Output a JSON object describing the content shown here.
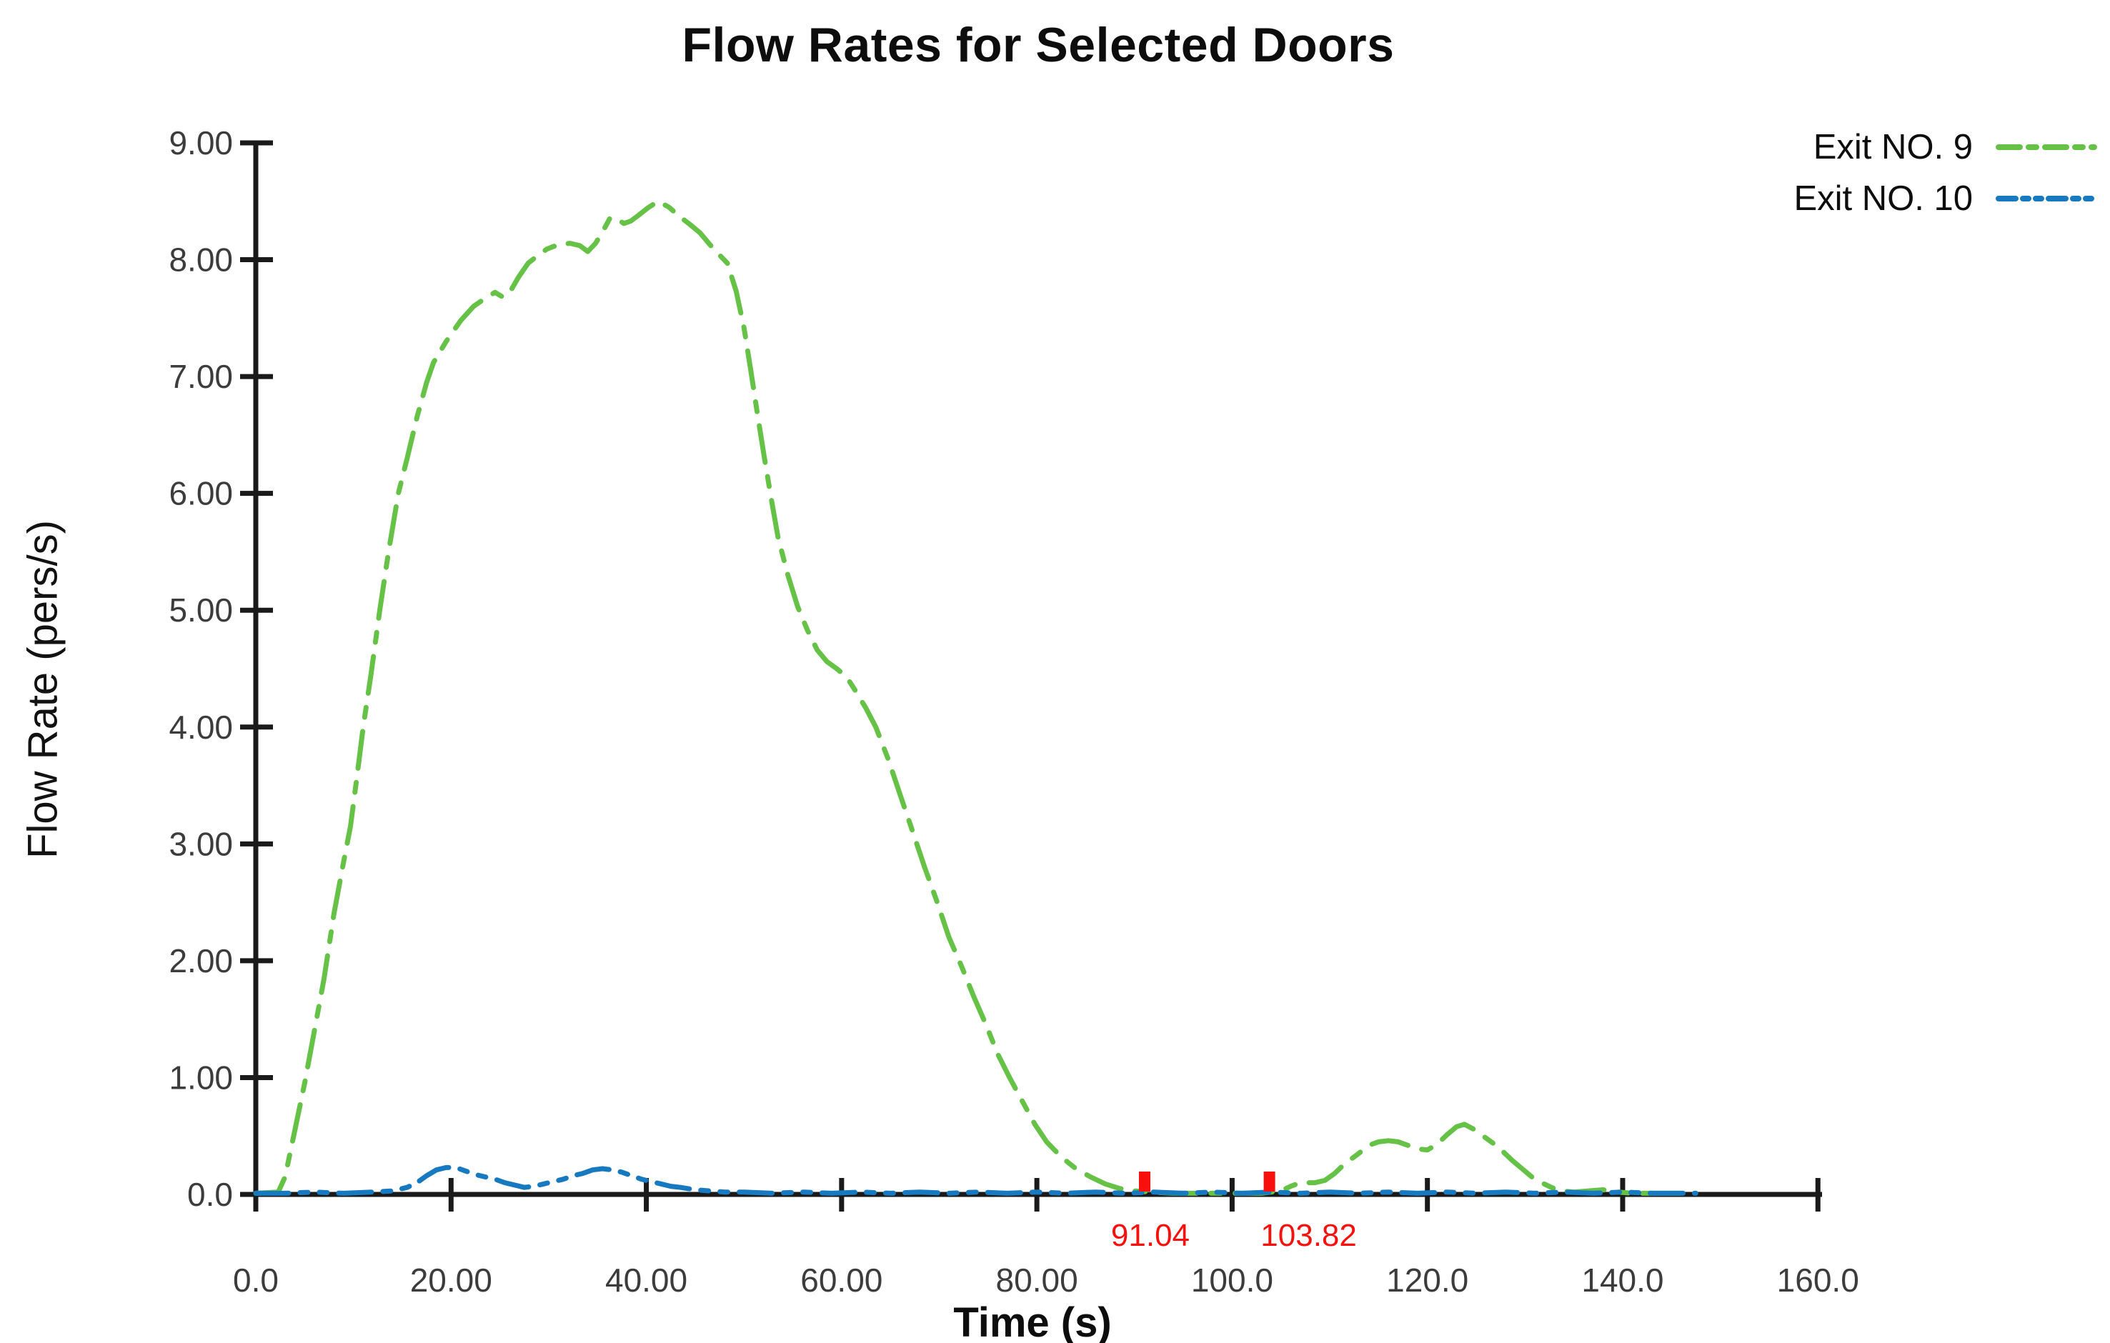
{
  "page": {
    "background": "#ffffff"
  },
  "chart_data": {
    "type": "line",
    "title": "Flow Rates for Selected Doors",
    "xlabel": "Time (s)",
    "ylabel": "Flow Rate (pers/s)",
    "xlim": [
      0,
      160
    ],
    "ylim": [
      0,
      9
    ],
    "grid": false,
    "legend_position": "top-right",
    "axis_color": "#1a1a1a",
    "tick_label_color": "#3c3c3c",
    "xticks": [
      {
        "label": "0.0",
        "t": 0
      },
      {
        "label": "20.00",
        "t": 20
      },
      {
        "label": "40.00",
        "t": 40
      },
      {
        "label": "60.00",
        "t": 60
      },
      {
        "label": "80.00",
        "t": 80
      },
      {
        "label": "100.0",
        "t": 100
      },
      {
        "label": "120.0",
        "t": 120
      },
      {
        "label": "140.0",
        "t": 140
      },
      {
        "label": "160.0",
        "t": 160
      }
    ],
    "yticks": [
      {
        "label": "9.00",
        "v": 9
      },
      {
        "label": "8.00",
        "v": 8
      },
      {
        "label": "7.00",
        "v": 7
      },
      {
        "label": "6.00",
        "v": 6
      },
      {
        "label": "5.00",
        "v": 5
      },
      {
        "label": "4.00",
        "v": 4
      },
      {
        "label": "3.00",
        "v": 3
      },
      {
        "label": "2.00",
        "v": 2
      },
      {
        "label": "1.00",
        "v": 1
      },
      {
        "label": "0.0",
        "v": 0
      }
    ],
    "annotations": [
      {
        "label": "91.04",
        "t": 91.04,
        "color": "#f8100d"
      },
      {
        "label": "103.82",
        "t": 103.82,
        "color": "#f8100d"
      }
    ],
    "series": [
      {
        "name": "Exit NO. 9",
        "color": "#66c247",
        "dash": "52 20 14 20",
        "points": [
          [
            0,
            0.01
          ],
          [
            2.3,
            0.02
          ],
          [
            3,
            0.15
          ],
          [
            4,
            0.55
          ],
          [
            5,
            0.95
          ],
          [
            6,
            1.4
          ],
          [
            7,
            1.85
          ],
          [
            8,
            2.4
          ],
          [
            9,
            2.85
          ],
          [
            9.7,
            3.15
          ],
          [
            10.4,
            3.6
          ],
          [
            11,
            4
          ],
          [
            11.8,
            4.45
          ],
          [
            12.7,
            5
          ],
          [
            13.6,
            5.5
          ],
          [
            14.6,
            6
          ],
          [
            15.5,
            6.3
          ],
          [
            16.5,
            6.65
          ],
          [
            17.5,
            6.95
          ],
          [
            18.2,
            7.12
          ],
          [
            19.5,
            7.3
          ],
          [
            21,
            7.48
          ],
          [
            22.3,
            7.6
          ],
          [
            23.5,
            7.67
          ],
          [
            24.5,
            7.72
          ],
          [
            25.3,
            7.68
          ],
          [
            26,
            7.72
          ],
          [
            26.9,
            7.85
          ],
          [
            27.9,
            7.97
          ],
          [
            28.8,
            8.03
          ],
          [
            29.8,
            8.09
          ],
          [
            31,
            8.13
          ],
          [
            32.2,
            8.14
          ],
          [
            33.2,
            8.12
          ],
          [
            34,
            8.07
          ],
          [
            34.8,
            8.14
          ],
          [
            35.6,
            8.25
          ],
          [
            36.3,
            8.36
          ],
          [
            37,
            8.35
          ],
          [
            37.7,
            8.31
          ],
          [
            38.4,
            8.33
          ],
          [
            39.2,
            8.38
          ],
          [
            40.1,
            8.44
          ],
          [
            41.2,
            8.5
          ],
          [
            42.3,
            8.45
          ],
          [
            43.4,
            8.37
          ],
          [
            44.5,
            8.3
          ],
          [
            45.5,
            8.23
          ],
          [
            46.5,
            8.13
          ],
          [
            47.5,
            8.04
          ],
          [
            48.3,
            7.97
          ],
          [
            49.2,
            7.73
          ],
          [
            50,
            7.42
          ],
          [
            50.7,
            7.05
          ],
          [
            51.4,
            6.67
          ],
          [
            52.1,
            6.3
          ],
          [
            52.8,
            5.95
          ],
          [
            53.5,
            5.62
          ],
          [
            54.5,
            5.3
          ],
          [
            55.5,
            5.03
          ],
          [
            56.5,
            4.83
          ],
          [
            57.5,
            4.66
          ],
          [
            58.5,
            4.56
          ],
          [
            59.5,
            4.5
          ],
          [
            60.5,
            4.43
          ],
          [
            61.5,
            4.3
          ],
          [
            62.5,
            4.16
          ],
          [
            63.5,
            4
          ],
          [
            64.8,
            3.72
          ],
          [
            66,
            3.42
          ],
          [
            67.3,
            3.1
          ],
          [
            68.5,
            2.8
          ],
          [
            69.8,
            2.5
          ],
          [
            71,
            2.2
          ],
          [
            72.3,
            1.95
          ],
          [
            73.5,
            1.7
          ],
          [
            74.8,
            1.45
          ],
          [
            76,
            1.2
          ],
          [
            77.2,
            1
          ],
          [
            78.5,
            0.8
          ],
          [
            79.8,
            0.6
          ],
          [
            81,
            0.45
          ],
          [
            82.5,
            0.32
          ],
          [
            84,
            0.22
          ],
          [
            85.5,
            0.15
          ],
          [
            87,
            0.09
          ],
          [
            88.5,
            0.05
          ],
          [
            90,
            0.03
          ],
          [
            91.5,
            0.02
          ],
          [
            94,
            0.01
          ],
          [
            97,
            0.01
          ],
          [
            100,
            0.01
          ],
          [
            103,
            0.01
          ],
          [
            105,
            0.03
          ],
          [
            106,
            0.07
          ],
          [
            107,
            0.1
          ],
          [
            108.5,
            0.1
          ],
          [
            109.5,
            0.12
          ],
          [
            110.5,
            0.18
          ],
          [
            111.5,
            0.26
          ],
          [
            112.8,
            0.34
          ],
          [
            114,
            0.42
          ],
          [
            115,
            0.45
          ],
          [
            116,
            0.46
          ],
          [
            117,
            0.45
          ],
          [
            118,
            0.42
          ],
          [
            119,
            0.39
          ],
          [
            120,
            0.38
          ],
          [
            121,
            0.43
          ],
          [
            122,
            0.51
          ],
          [
            123,
            0.58
          ],
          [
            123.8,
            0.6
          ],
          [
            124.7,
            0.56
          ],
          [
            125.7,
            0.5
          ],
          [
            126.7,
            0.44
          ],
          [
            127.7,
            0.37
          ],
          [
            128.7,
            0.29
          ],
          [
            129.7,
            0.22
          ],
          [
            130.7,
            0.15
          ],
          [
            131.7,
            0.1
          ],
          [
            132.7,
            0.06
          ],
          [
            133.7,
            0.03
          ],
          [
            135,
            0.02
          ],
          [
            136.5,
            0.03
          ],
          [
            138,
            0.04
          ],
          [
            139.5,
            0.02
          ],
          [
            141,
            0.01
          ],
          [
            143,
            0.01
          ],
          [
            145,
            0.01
          ],
          [
            147,
            0.01
          ]
        ]
      },
      {
        "name": "Exit NO. 10",
        "color": "#177ac0",
        "dash": "46 16 11 16 11 16",
        "points": [
          [
            0,
            0.01
          ],
          [
            3,
            0.01
          ],
          [
            6,
            0.02
          ],
          [
            9,
            0.01
          ],
          [
            12,
            0.02
          ],
          [
            14,
            0.03
          ],
          [
            15.5,
            0.06
          ],
          [
            16.5,
            0.1
          ],
          [
            17.5,
            0.16
          ],
          [
            18.5,
            0.21
          ],
          [
            19.5,
            0.23
          ],
          [
            20.5,
            0.23
          ],
          [
            21.5,
            0.2
          ],
          [
            22.5,
            0.17
          ],
          [
            23.5,
            0.15
          ],
          [
            24.5,
            0.13
          ],
          [
            25.5,
            0.1
          ],
          [
            26.5,
            0.08
          ],
          [
            27.5,
            0.06
          ],
          [
            28.5,
            0.07
          ],
          [
            29.5,
            0.09
          ],
          [
            30.5,
            0.11
          ],
          [
            31.5,
            0.13
          ],
          [
            32.5,
            0.16
          ],
          [
            33.5,
            0.18
          ],
          [
            34.5,
            0.21
          ],
          [
            35.5,
            0.22
          ],
          [
            36.5,
            0.21
          ],
          [
            37.5,
            0.19
          ],
          [
            38.5,
            0.16
          ],
          [
            39.5,
            0.13
          ],
          [
            40.5,
            0.11
          ],
          [
            41.5,
            0.09
          ],
          [
            42.5,
            0.07
          ],
          [
            43.5,
            0.06
          ],
          [
            45,
            0.04
          ],
          [
            46.5,
            0.03
          ],
          [
            48,
            0.02
          ],
          [
            50,
            0.02
          ],
          [
            53,
            0.01
          ],
          [
            56,
            0.02
          ],
          [
            59,
            0.01
          ],
          [
            62,
            0.02
          ],
          [
            65,
            0.01
          ],
          [
            68,
            0.02
          ],
          [
            71,
            0.01
          ],
          [
            74,
            0.02
          ],
          [
            77,
            0.01
          ],
          [
            80,
            0.02
          ],
          [
            83,
            0.01
          ],
          [
            86,
            0.02
          ],
          [
            89,
            0.01
          ],
          [
            92,
            0.02
          ],
          [
            95,
            0.01
          ],
          [
            98,
            0.02
          ],
          [
            101,
            0.01
          ],
          [
            104,
            0.02
          ],
          [
            107,
            0.01
          ],
          [
            110,
            0.02
          ],
          [
            113,
            0.01
          ],
          [
            116,
            0.02
          ],
          [
            119,
            0.01
          ],
          [
            122,
            0.02
          ],
          [
            125,
            0.01
          ],
          [
            128,
            0.02
          ],
          [
            131,
            0.01
          ],
          [
            134,
            0.02
          ],
          [
            137,
            0.01
          ],
          [
            140,
            0.02
          ],
          [
            143,
            0.01
          ],
          [
            146,
            0.01
          ],
          [
            147.5,
            0.01
          ]
        ]
      }
    ]
  }
}
